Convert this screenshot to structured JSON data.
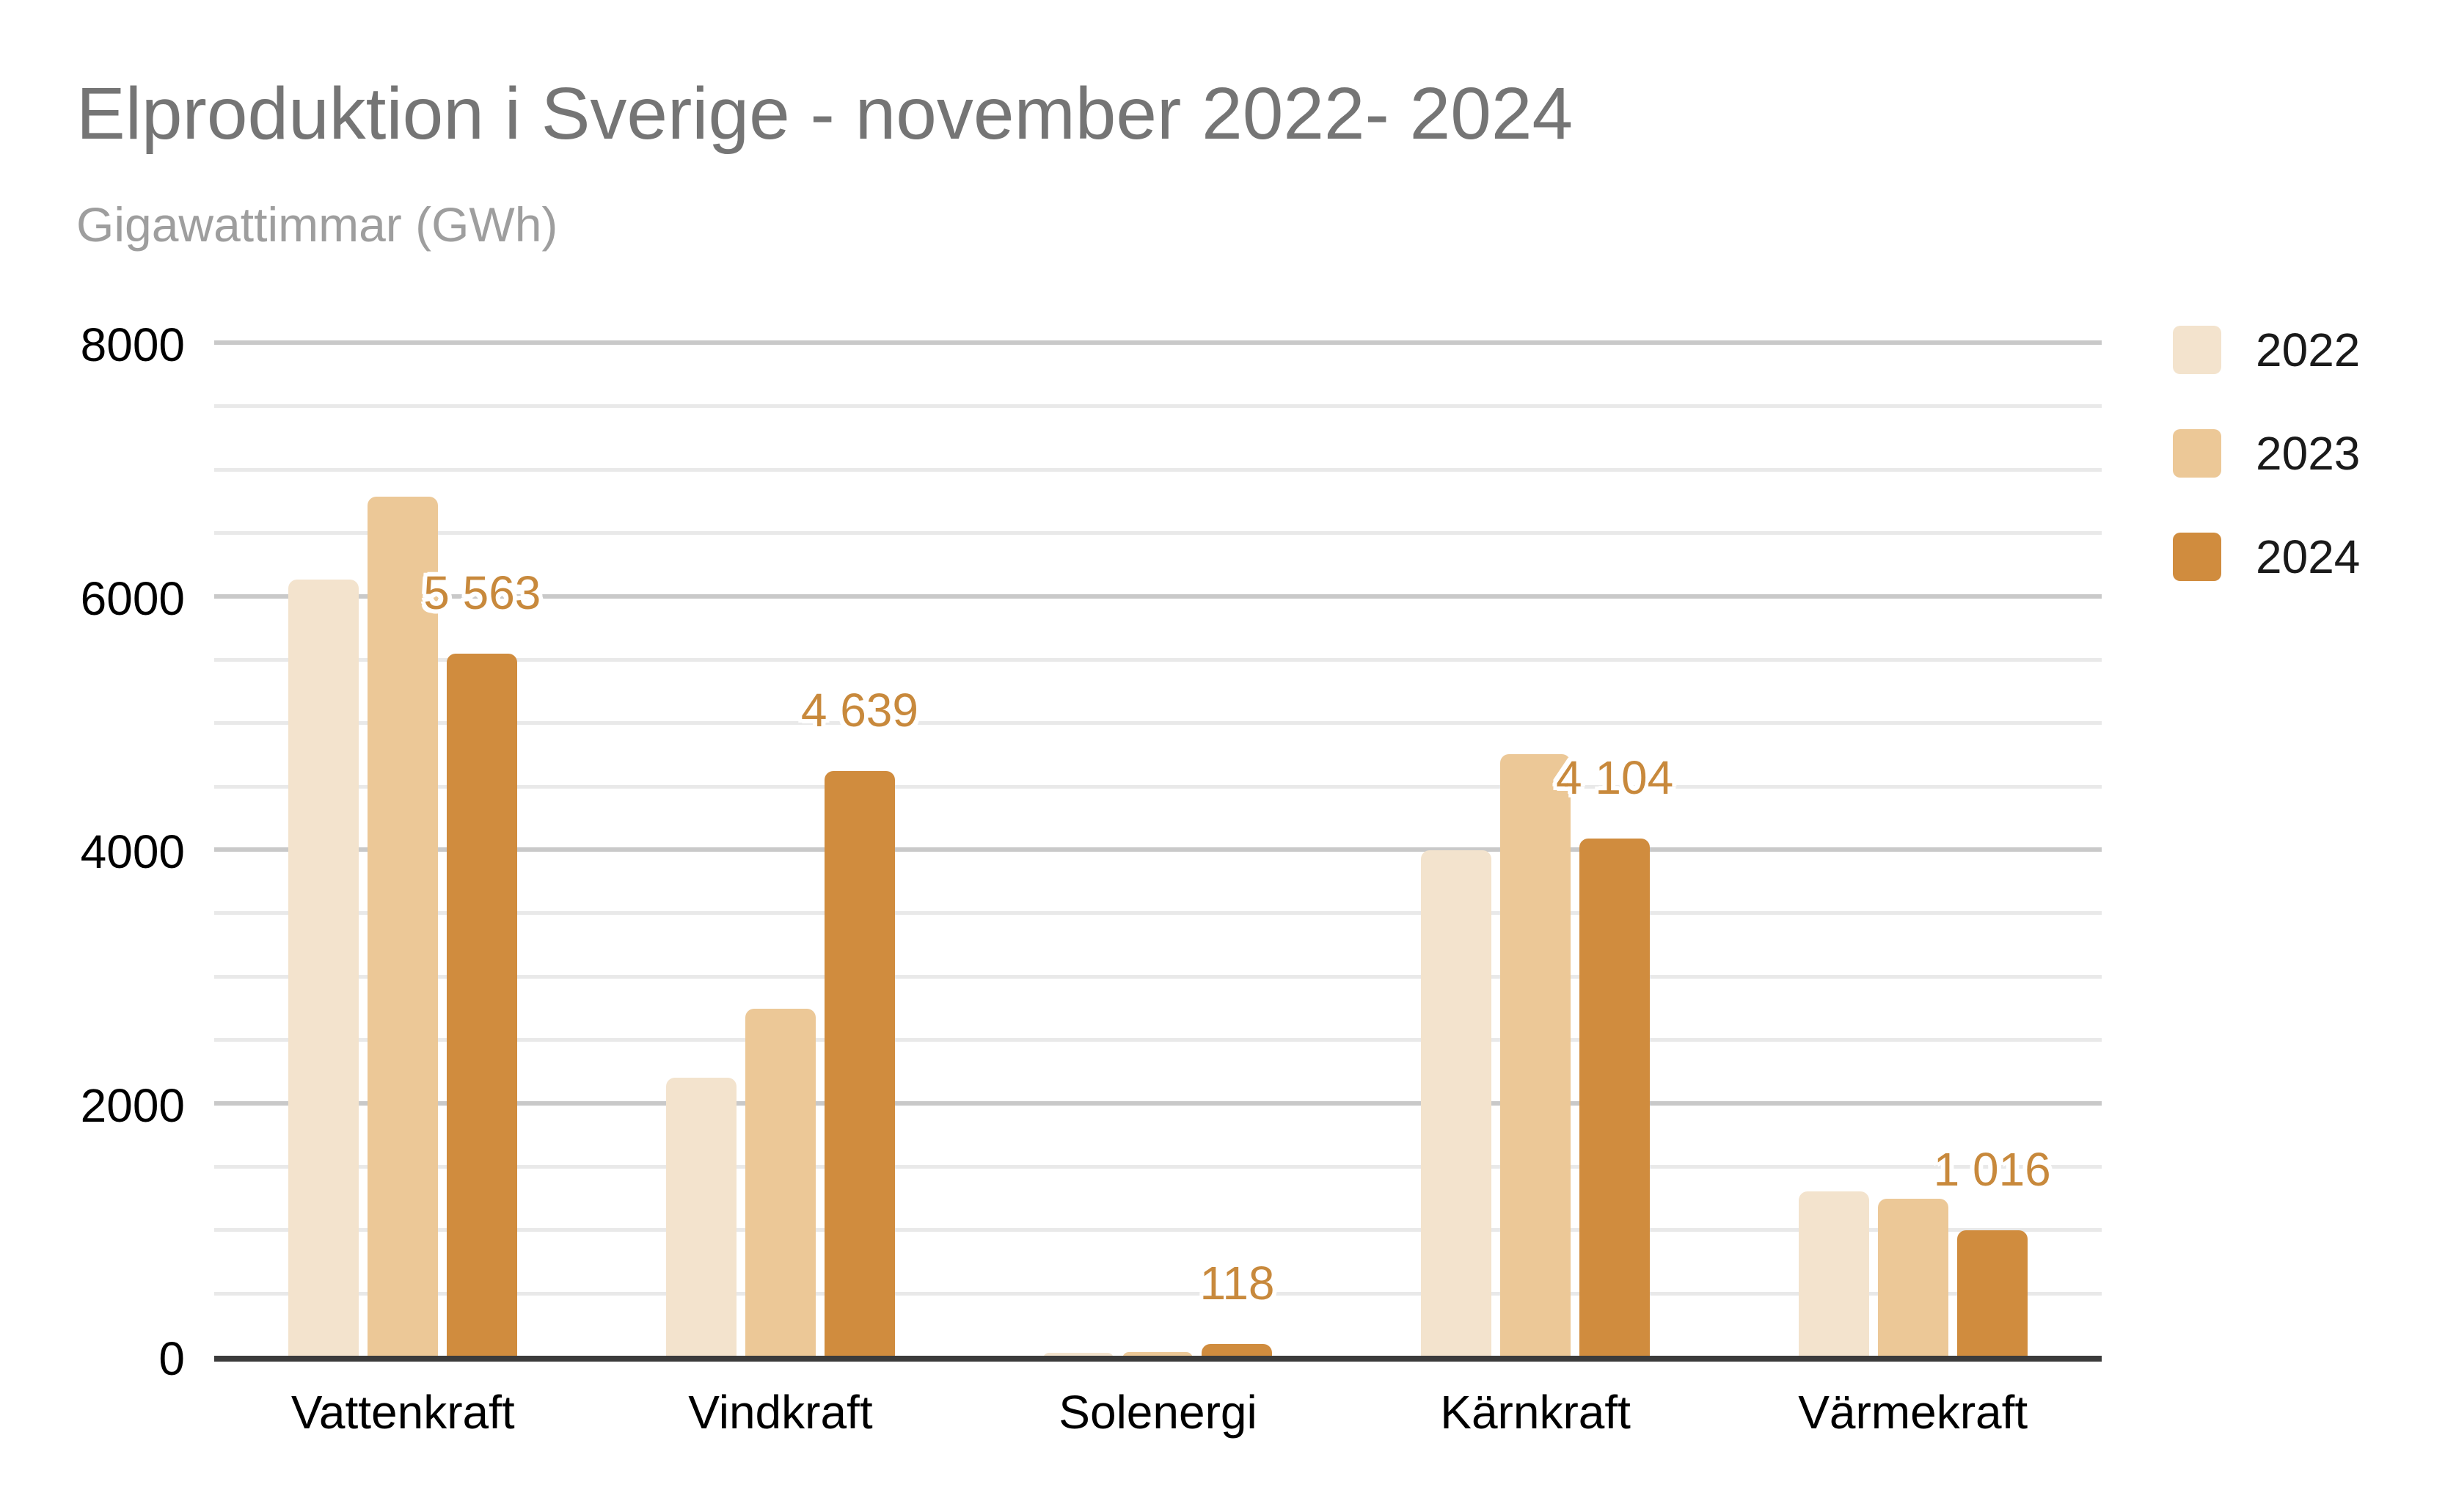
{
  "chart_data": {
    "type": "bar",
    "title": "Elproduktion i Sverige - november 2022- 2024",
    "subtitle": "Gigawattimmar (GWh)",
    "xlabel": "",
    "ylabel": "Gigawattimmar (GWh)",
    "ylim": [
      0,
      8000
    ],
    "grid": {
      "visible": true,
      "major_step": 2000,
      "minor_step": 500
    },
    "legend_position": "top-right",
    "yticks": [
      "0",
      "2000",
      "4000",
      "6000",
      "8000"
    ],
    "categories": [
      "Vattenkraft",
      "Vindkraft",
      "Solenergi",
      "Kärnkraft",
      "Värmekraft"
    ],
    "series": [
      {
        "name": "2022",
        "color": "#f3e3cd",
        "values": [
          6150,
          2220,
          45,
          4010,
          1320
        ]
      },
      {
        "name": "2023",
        "color": "#ecc897",
        "values": [
          6800,
          2760,
          55,
          4770,
          1260
        ]
      },
      {
        "name": "2024",
        "color": "#d08c3e",
        "values": [
          5563,
          4639,
          118,
          4104,
          1016
        ],
        "data_labels": [
          "5 563",
          "4 639",
          "118",
          "4 104",
          "1 016"
        ]
      }
    ],
    "data_label_color": "#c8893c",
    "colors": {
      "axis_line": "#3b3b3b",
      "major_grid": "#c9c9c9",
      "minor_grid": "#e9e9e9",
      "title": "#757575",
      "subtitle": "#9e9e9e"
    }
  }
}
